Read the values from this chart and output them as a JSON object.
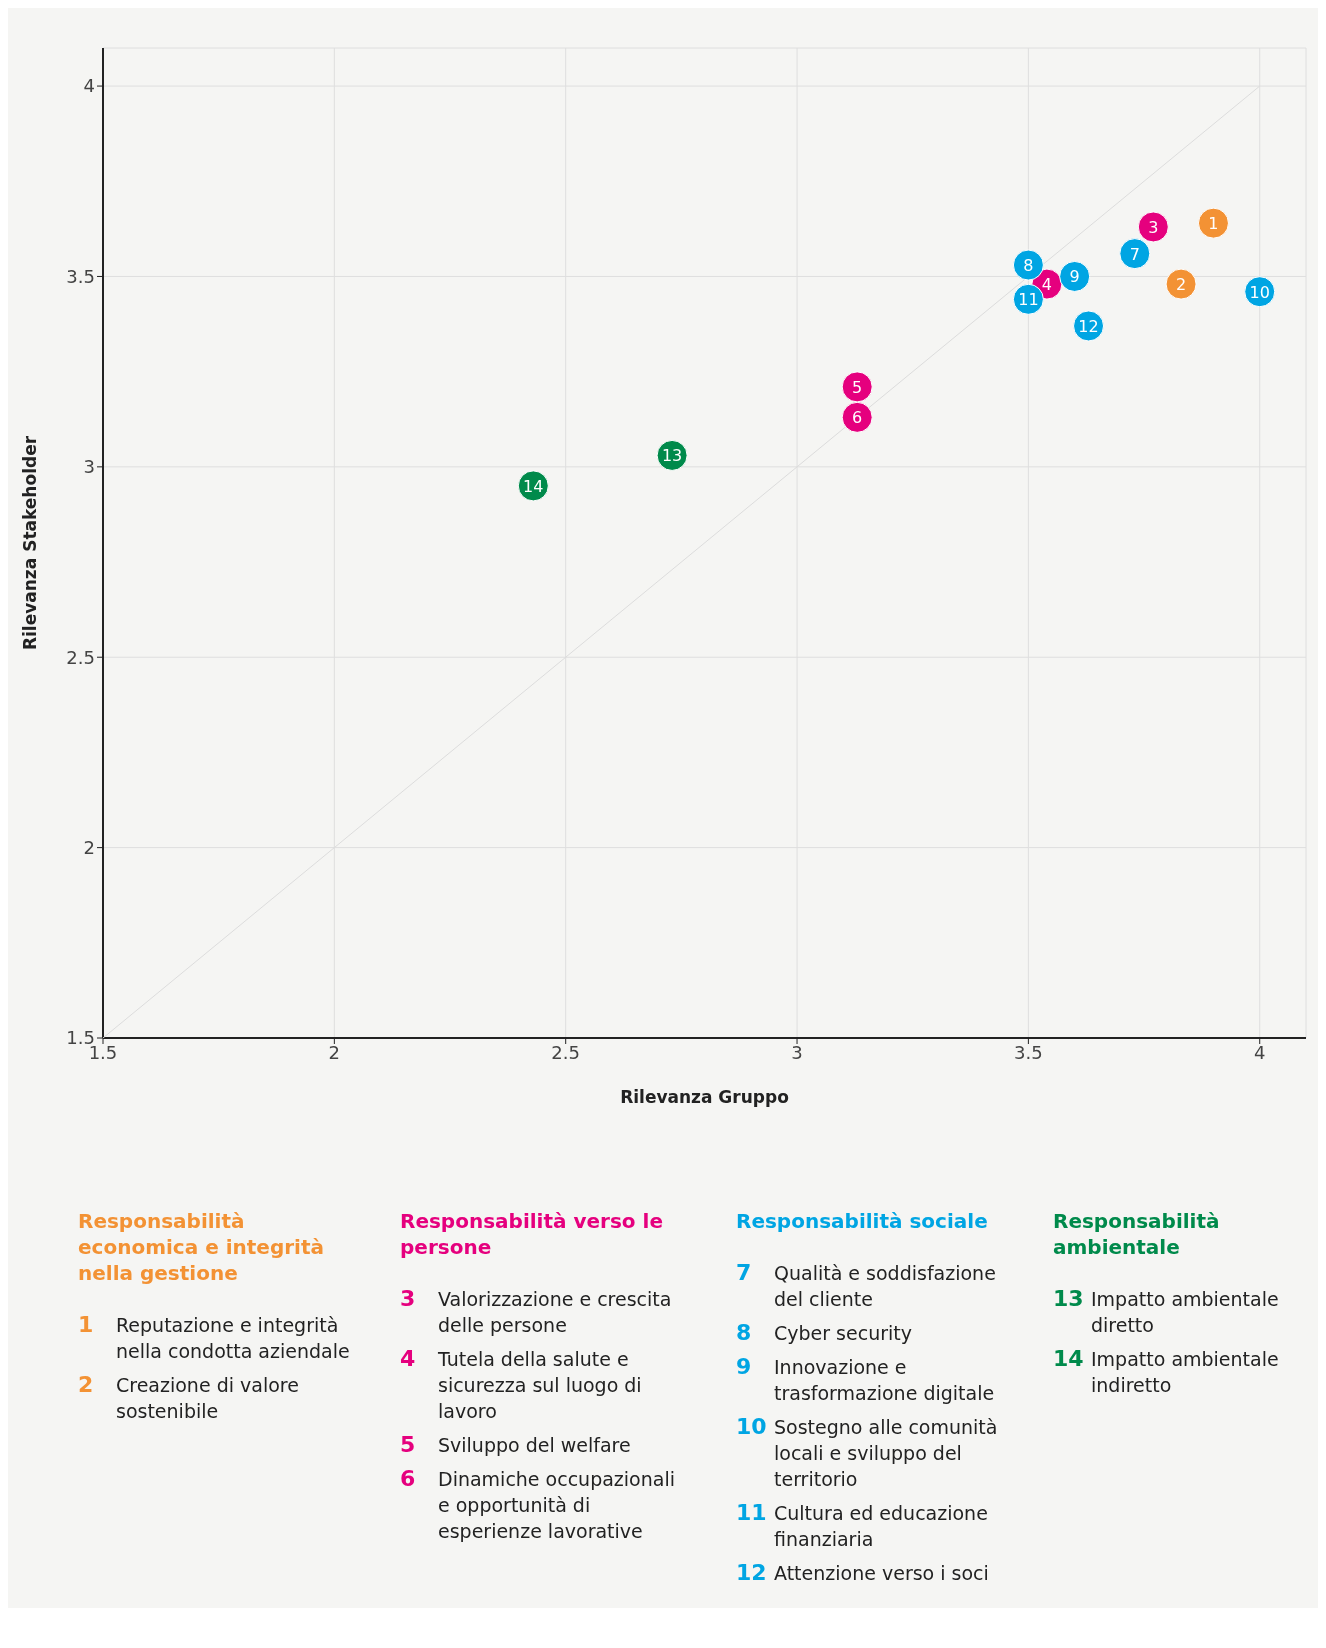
{
  "chart_data": {
    "type": "scatter",
    "xlabel": "Rilevanza Gruppo",
    "ylabel": "Rilevanza Stakeholder",
    "xlim": [
      1.5,
      4.1
    ],
    "ylim": [
      1.5,
      4.1
    ],
    "xticks": [
      1.5,
      2,
      2.5,
      3,
      3.5,
      4
    ],
    "yticks": [
      1.5,
      2,
      2.5,
      3,
      3.5,
      4
    ],
    "grid": true,
    "legend": "bottom",
    "series": [
      {
        "type": "line",
        "color": "#dcdcdc",
        "marker": "none",
        "x": [
          1.5,
          4
        ],
        "values": [
          1.5,
          4
        ]
      },
      {
        "name": "Responsabilità economica e integrità nella gestione",
        "color": "#f39234",
        "marker": "circle",
        "x": [
          3.9,
          3.83
        ],
        "values": [
          3.64,
          3.48
        ]
      },
      {
        "name": "Responsabilità verso le persone",
        "color": "#e5007e",
        "marker": "circle",
        "x": [
          3.77,
          3.54,
          3.13,
          3.13
        ],
        "values": [
          3.63,
          3.48,
          3.21,
          3.13
        ]
      },
      {
        "name": "Responsabilità sociale",
        "color": "#00a5e3",
        "marker": "circle",
        "x": [
          3.73,
          3.5,
          3.6,
          4.0,
          3.5,
          3.63
        ],
        "values": [
          3.56,
          3.53,
          3.5,
          3.46,
          3.44,
          3.37
        ]
      },
      {
        "name": "Responsabilità ambientale",
        "color": "#008a4b",
        "marker": "circle",
        "x": [
          2.73,
          2.43
        ],
        "values": [
          3.03,
          2.95
        ]
      }
    ],
    "annotations": [
      {
        "text": "1",
        "x": 3.9,
        "y": 3.64
      },
      {
        "text": "2",
        "x": 3.83,
        "y": 3.48
      },
      {
        "text": "3",
        "x": 3.77,
        "y": 3.63
      },
      {
        "text": "4",
        "x": 3.54,
        "y": 3.48
      },
      {
        "text": "5",
        "x": 3.13,
        "y": 3.21
      },
      {
        "text": "6",
        "x": 3.13,
        "y": 3.13
      },
      {
        "text": "7",
        "x": 3.73,
        "y": 3.56
      },
      {
        "text": "8",
        "x": 3.5,
        "y": 3.53
      },
      {
        "text": "9",
        "x": 3.6,
        "y": 3.5
      },
      {
        "text": "10",
        "x": 4.0,
        "y": 3.46
      },
      {
        "text": "11",
        "x": 3.5,
        "y": 3.44
      },
      {
        "text": "12",
        "x": 3.63,
        "y": 3.37
      },
      {
        "text": "13",
        "x": 2.73,
        "y": 3.03
      },
      {
        "text": "14",
        "x": 2.43,
        "y": 2.95
      },
      "1 Reputazione e integrità nella condotta aziendale",
      "2 Creazione di valore sostenibile",
      "3 Valorizzazione e crescita delle persone",
      "4 Tutela della salute e sicurezza sul luogo di lavoro",
      "5 Sviluppo del welfare",
      "6 Dinamiche occupazionali e opportunità di esperienze lavorative",
      "7 Qualità e soddisfazione del cliente",
      "8 Cyber security",
      "9 Innovazione e trasformazione digitale",
      "10 Sostegno alle comunità locali e sviluppo del territorio",
      "11 Cultura ed educazione finanziaria",
      "12 Attenzione verso i soci",
      "13 Impatto ambientale diretto",
      "14 Impatto ambientale indiretto"
    ]
  }
}
